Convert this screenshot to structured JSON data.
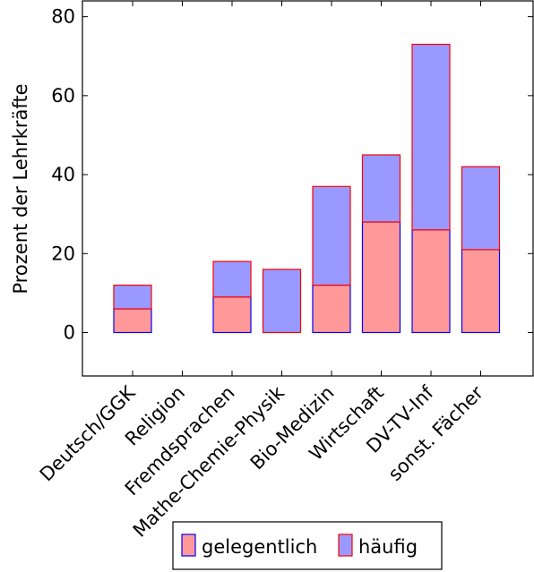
{
  "chart_data": {
    "type": "bar",
    "stacked": true,
    "categories": [
      "Deutsch/GGK",
      "Religion",
      "Fremdsprachen",
      "Mathe-Chemie-Physik",
      "Bio-Medizin",
      "Wirtschaft",
      "DV-TV-Inf",
      "sonst. Fächer"
    ],
    "series": [
      {
        "name": "gelegentlich",
        "values": [
          6,
          0,
          9,
          0,
          12,
          28,
          26,
          21
        ],
        "fill": "#ff9999",
        "stroke": "#0000ff"
      },
      {
        "name": "häufig",
        "values": [
          6,
          0,
          9,
          16,
          25,
          17,
          47,
          21
        ],
        "fill": "#9999ff",
        "stroke": "#ff0000"
      }
    ],
    "title": "",
    "xlabel": "",
    "ylabel": "Prozent der Lehrkräfte",
    "ylim": [
      -11,
      84
    ],
    "yticks": [
      0,
      20,
      40,
      60,
      80
    ],
    "grid": false,
    "legend_position": "bottom"
  }
}
